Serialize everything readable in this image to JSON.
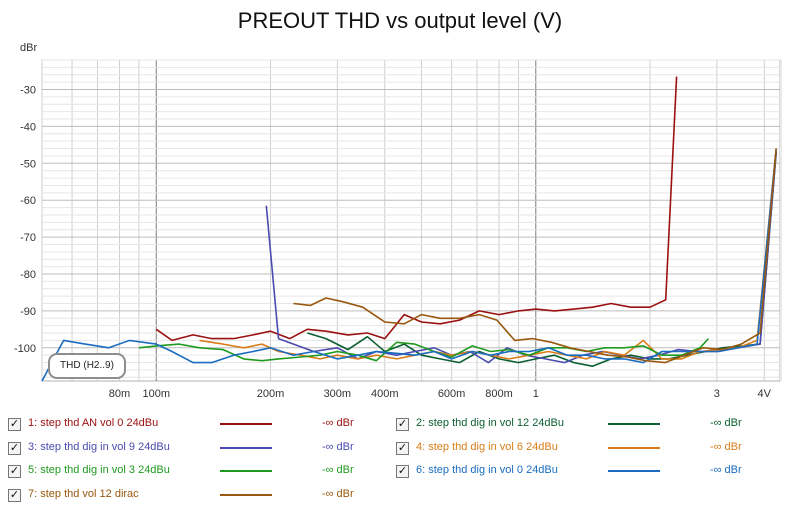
{
  "chart_data": {
    "type": "line",
    "title": "PREOUT THD vs output level (V)",
    "ylabel": "dBr",
    "xlabel": "",
    "x_scale": "log",
    "xlim": [
      0.05,
      4.4
    ],
    "ylim": [
      -109,
      -22
    ],
    "grid": true,
    "x_tick_labels": [
      {
        "value": 0.08,
        "label": "80m"
      },
      {
        "value": 0.1,
        "label": "100m"
      },
      {
        "value": 0.2,
        "label": "200m"
      },
      {
        "value": 0.3,
        "label": "300m"
      },
      {
        "value": 0.4,
        "label": "400m"
      },
      {
        "value": 0.6,
        "label": "600m"
      },
      {
        "value": 0.8,
        "label": "800m"
      },
      {
        "value": 1,
        "label": "1"
      },
      {
        "value": 3,
        "label": "3"
      },
      {
        "value": 4,
        "label": "4V"
      }
    ],
    "y_tick_labels": [
      {
        "value": -30,
        "label": "-30"
      },
      {
        "value": -40,
        "label": "-40"
      },
      {
        "value": -50,
        "label": "-50"
      },
      {
        "value": -60,
        "label": "-60"
      },
      {
        "value": -70,
        "label": "-70"
      },
      {
        "value": -80,
        "label": "-80"
      },
      {
        "value": -90,
        "label": "-90"
      },
      {
        "value": -100,
        "label": "-100"
      }
    ],
    "series": [
      {
        "name": "1: step thd AN vol 0 24dBu",
        "value_label": "-∞ dBr",
        "color": "#9b1010",
        "points": [
          [
            0.1,
            -95
          ],
          [
            0.11,
            -98
          ],
          [
            0.125,
            -96.5
          ],
          [
            0.14,
            -97.5
          ],
          [
            0.16,
            -97.5
          ],
          [
            0.18,
            -96.5
          ],
          [
            0.2,
            -95.5
          ],
          [
            0.225,
            -97.5
          ],
          [
            0.25,
            -95
          ],
          [
            0.28,
            -95.5
          ],
          [
            0.32,
            -96.5
          ],
          [
            0.36,
            -96
          ],
          [
            0.4,
            -97.5
          ],
          [
            0.45,
            -91
          ],
          [
            0.5,
            -93
          ],
          [
            0.56,
            -93.5
          ],
          [
            0.63,
            -92.5
          ],
          [
            0.71,
            -90
          ],
          [
            0.8,
            -91
          ],
          [
            0.9,
            -90
          ],
          [
            1.0,
            -89.5
          ],
          [
            1.12,
            -90
          ],
          [
            1.26,
            -89.5
          ],
          [
            1.41,
            -89
          ],
          [
            1.58,
            -88
          ],
          [
            1.78,
            -89
          ],
          [
            2.0,
            -89
          ],
          [
            2.2,
            -87
          ],
          [
            2.35,
            -26.5
          ]
        ]
      },
      {
        "name": "2: step thd dig in vol 12 24dBu",
        "value_label": "-∞ dBr",
        "color": "#0b5e30",
        "points": [
          [
            0.25,
            -96
          ],
          [
            0.28,
            -97.5
          ],
          [
            0.32,
            -100.5
          ],
          [
            0.36,
            -97
          ],
          [
            0.4,
            -101
          ],
          [
            0.45,
            -99
          ],
          [
            0.5,
            -102
          ],
          [
            0.56,
            -103
          ],
          [
            0.63,
            -104
          ],
          [
            0.71,
            -101
          ],
          [
            0.8,
            -103
          ],
          [
            0.9,
            -104
          ],
          [
            1.0,
            -103
          ],
          [
            1.12,
            -102
          ],
          [
            1.26,
            -104
          ],
          [
            1.41,
            -105
          ],
          [
            1.58,
            -103
          ],
          [
            1.78,
            -102
          ],
          [
            2.0,
            -103
          ],
          [
            2.24,
            -103
          ],
          [
            2.5,
            -102
          ],
          [
            2.8,
            -101
          ],
          [
            3.1,
            -100
          ],
          [
            3.5,
            -99.5
          ],
          [
            3.9,
            -99
          ],
          [
            4.3,
            -47
          ]
        ]
      },
      {
        "name": "3: step thd dig in vol 9 24dBu",
        "value_label": "-∞ dBr",
        "color": "#4a4ab0",
        "points": [
          [
            0.195,
            -61.5
          ],
          [
            0.21,
            -97.5
          ],
          [
            0.23,
            -99
          ],
          [
            0.26,
            -101
          ],
          [
            0.3,
            -100
          ],
          [
            0.34,
            -103
          ],
          [
            0.38,
            -101
          ],
          [
            0.43,
            -102
          ],
          [
            0.48,
            -101
          ],
          [
            0.54,
            -100
          ],
          [
            0.6,
            -102
          ],
          [
            0.67,
            -101
          ],
          [
            0.75,
            -104
          ],
          [
            0.84,
            -100
          ],
          [
            0.94,
            -102
          ],
          [
            1.06,
            -103
          ],
          [
            1.19,
            -104
          ],
          [
            1.33,
            -102
          ],
          [
            1.5,
            -101
          ],
          [
            1.68,
            -102
          ],
          [
            1.88,
            -103
          ],
          [
            2.11,
            -102
          ],
          [
            2.37,
            -100.5
          ],
          [
            2.66,
            -101
          ],
          [
            3.0,
            -101
          ],
          [
            3.4,
            -100
          ],
          [
            3.9,
            -99
          ],
          [
            4.3,
            -47
          ]
        ]
      },
      {
        "name": "4: step thd dig in vol 6 24dBu",
        "value_label": "-∞ dBr",
        "color": "#d97d18",
        "points": [
          [
            0.13,
            -98
          ],
          [
            0.15,
            -99
          ],
          [
            0.17,
            -100
          ],
          [
            0.19,
            -99
          ],
          [
            0.21,
            -101
          ],
          [
            0.24,
            -102
          ],
          [
            0.27,
            -103
          ],
          [
            0.3,
            -102
          ],
          [
            0.34,
            -103
          ],
          [
            0.38,
            -102
          ],
          [
            0.43,
            -103
          ],
          [
            0.48,
            -102
          ],
          [
            0.54,
            -101
          ],
          [
            0.6,
            -102
          ],
          [
            0.68,
            -101
          ],
          [
            0.76,
            -102
          ],
          [
            0.85,
            -103
          ],
          [
            0.96,
            -102
          ],
          [
            1.08,
            -101
          ],
          [
            1.21,
            -102
          ],
          [
            1.36,
            -103
          ],
          [
            1.52,
            -101
          ],
          [
            1.71,
            -102
          ],
          [
            1.92,
            -98
          ],
          [
            2.15,
            -103
          ],
          [
            2.42,
            -103
          ],
          [
            2.71,
            -101
          ],
          [
            3.04,
            -100.5
          ],
          [
            3.41,
            -100
          ],
          [
            3.83,
            -98
          ],
          [
            4.3,
            -46
          ]
        ]
      },
      {
        "name": "5: step thd dig in vol 3 24dBu",
        "value_label": "-∞ dBr",
        "color": "#1f9a1f",
        "points": [
          [
            0.09,
            -100
          ],
          [
            0.1,
            -99.5
          ],
          [
            0.115,
            -99
          ],
          [
            0.13,
            -100
          ],
          [
            0.15,
            -100.5
          ],
          [
            0.17,
            -103
          ],
          [
            0.19,
            -103.5
          ],
          [
            0.21,
            -103
          ],
          [
            0.24,
            -102.5
          ],
          [
            0.27,
            -102
          ],
          [
            0.3,
            -101
          ],
          [
            0.34,
            -102
          ],
          [
            0.38,
            -103.5
          ],
          [
            0.43,
            -98.5
          ],
          [
            0.48,
            -99
          ],
          [
            0.54,
            -101
          ],
          [
            0.6,
            -102.5
          ],
          [
            0.68,
            -99.5
          ],
          [
            0.76,
            -101
          ],
          [
            0.85,
            -100.5
          ],
          [
            0.96,
            -102
          ],
          [
            1.08,
            -100
          ],
          [
            1.21,
            -100
          ],
          [
            1.36,
            -101
          ],
          [
            1.52,
            -100
          ],
          [
            1.71,
            -100
          ],
          [
            1.92,
            -99.5
          ],
          [
            2.15,
            -102
          ],
          [
            2.42,
            -102
          ],
          [
            2.71,
            -100
          ],
          [
            2.85,
            -97.5
          ]
        ]
      },
      {
        "name": "6: step thd dig in vol 0 24dBu",
        "value_label": "-∞ dBr",
        "color": "#1a6dc0",
        "points": [
          [
            0.05,
            -109
          ],
          [
            0.057,
            -98
          ],
          [
            0.065,
            -99
          ],
          [
            0.075,
            -100
          ],
          [
            0.085,
            -98
          ],
          [
            0.1,
            -99
          ],
          [
            0.11,
            -101
          ],
          [
            0.125,
            -104
          ],
          [
            0.14,
            -104
          ],
          [
            0.16,
            -102
          ],
          [
            0.18,
            -101
          ],
          [
            0.2,
            -100
          ],
          [
            0.23,
            -102
          ],
          [
            0.26,
            -101
          ],
          [
            0.3,
            -103
          ],
          [
            0.34,
            -102
          ],
          [
            0.38,
            -101
          ],
          [
            0.43,
            -101.5
          ],
          [
            0.48,
            -102
          ],
          [
            0.54,
            -101
          ],
          [
            0.6,
            -103
          ],
          [
            0.68,
            -101
          ],
          [
            0.76,
            -102
          ],
          [
            0.85,
            -101
          ],
          [
            0.96,
            -101
          ],
          [
            1.08,
            -100
          ],
          [
            1.21,
            -102
          ],
          [
            1.36,
            -102
          ],
          [
            1.52,
            -103
          ],
          [
            1.71,
            -103
          ],
          [
            1.92,
            -104
          ],
          [
            2.15,
            -101
          ],
          [
            2.42,
            -101
          ],
          [
            2.71,
            -101
          ],
          [
            3.04,
            -101
          ],
          [
            3.41,
            -100
          ],
          [
            3.83,
            -99
          ],
          [
            4.3,
            -46
          ]
        ]
      },
      {
        "name": "7: step thd vol 12 dirac",
        "value_label": "-∞ dBr",
        "color": "#98580e",
        "points": [
          [
            0.23,
            -88
          ],
          [
            0.255,
            -88.5
          ],
          [
            0.28,
            -86.5
          ],
          [
            0.31,
            -87.5
          ],
          [
            0.35,
            -89
          ],
          [
            0.4,
            -93
          ],
          [
            0.45,
            -93.5
          ],
          [
            0.5,
            -91
          ],
          [
            0.56,
            -92
          ],
          [
            0.63,
            -92
          ],
          [
            0.71,
            -91
          ],
          [
            0.79,
            -92.5
          ],
          [
            0.88,
            -98
          ],
          [
            0.98,
            -97.5
          ],
          [
            1.1,
            -98.5
          ],
          [
            1.23,
            -100
          ],
          [
            1.38,
            -101
          ],
          [
            1.55,
            -102
          ],
          [
            1.74,
            -102.5
          ],
          [
            1.95,
            -103.5
          ],
          [
            2.19,
            -104
          ],
          [
            2.46,
            -102
          ],
          [
            2.76,
            -100
          ],
          [
            3.1,
            -100.5
          ],
          [
            3.48,
            -99
          ],
          [
            3.9,
            -96
          ],
          [
            4.3,
            -46
          ]
        ]
      }
    ]
  },
  "badge": {
    "label": "THD (H2..9)"
  }
}
